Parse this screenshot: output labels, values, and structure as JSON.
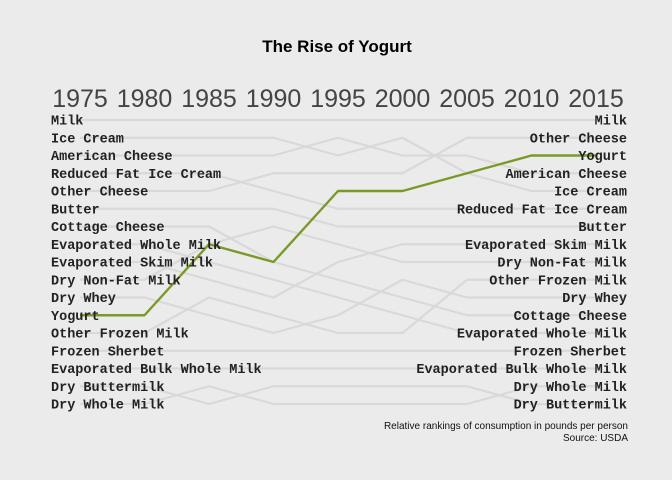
{
  "chart_data": {
    "type": "line",
    "title": "The Rise of Yogurt",
    "subtitle": "",
    "x": [
      "1975",
      "1980",
      "1985",
      "1990",
      "1995",
      "2000",
      "2005",
      "2010",
      "2015"
    ],
    "ylim": [
      1,
      17
    ],
    "highlight_series": "Yogurt",
    "colors": {
      "background": "#ebebeb",
      "highlight": "#7a9a28",
      "other_lines": "#d9d9d9",
      "year_labels": "#444444"
    },
    "left_labels": [
      "Milk",
      "Ice Cream",
      "American Cheese",
      "Reduced Fat Ice Cream",
      "Other Cheese",
      "Butter",
      "Cottage Cheese",
      "Evaporated Whole Milk",
      "Evaporated Skim Milk",
      "Dry Non-Fat Milk",
      "Dry Whey",
      "Yogurt",
      "Other Frozen Milk",
      "Frozen Sherbet",
      "Evaporated Bulk Whole Milk",
      "Dry Buttermilk",
      "Dry Whole Milk"
    ],
    "right_labels": [
      "Milk",
      "Other Cheese",
      "Yogurt",
      "American Cheese",
      "Ice Cream",
      "Reduced Fat Ice Cream",
      "Butter",
      "Evaporated Skim Milk",
      "Dry Non-Fat Milk",
      "Other Frozen Milk",
      "Dry Whey",
      "Cottage Cheese",
      "Evaporated Whole Milk",
      "Frozen Sherbet",
      "Evaporated Bulk Whole Milk",
      "Dry Whole Milk",
      "Dry Buttermilk"
    ],
    "series": [
      {
        "name": "Milk",
        "values": [
          1,
          1,
          1,
          1,
          1,
          1,
          1,
          1,
          1
        ]
      },
      {
        "name": "Ice Cream",
        "values": [
          2,
          2,
          2,
          2,
          3,
          2,
          4,
          5,
          5
        ]
      },
      {
        "name": "American Cheese",
        "values": [
          3,
          3,
          3,
          3,
          2,
          3,
          3,
          4,
          4
        ]
      },
      {
        "name": "Reduced Fat Ice Cream",
        "values": [
          4,
          4,
          4,
          5,
          6,
          6,
          6,
          6,
          6
        ]
      },
      {
        "name": "Other Cheese",
        "values": [
          5,
          5,
          5,
          4,
          4,
          4,
          2,
          2,
          2
        ]
      },
      {
        "name": "Butter",
        "values": [
          6,
          6,
          6,
          6,
          7,
          7,
          7,
          7,
          7
        ]
      },
      {
        "name": "Cottage Cheese",
        "values": [
          7,
          7,
          7,
          9,
          10,
          11,
          12,
          12,
          12
        ]
      },
      {
        "name": "Evaporated Whole Milk",
        "values": [
          8,
          8,
          9,
          10,
          11,
          12,
          13,
          13,
          13
        ]
      },
      {
        "name": "Evaporated Skim Milk",
        "values": [
          9,
          9,
          10,
          11,
          9,
          8,
          8,
          8,
          8
        ]
      },
      {
        "name": "Dry Non-Fat Milk",
        "values": [
          10,
          10,
          8,
          7,
          8,
          9,
          9,
          9,
          9
        ]
      },
      {
        "name": "Dry Whey",
        "values": [
          11,
          11,
          12,
          13,
          12,
          10,
          11,
          11,
          11
        ]
      },
      {
        "name": "Yogurt",
        "values": [
          12,
          12,
          8,
          9,
          5,
          5,
          4,
          3,
          3
        ]
      },
      {
        "name": "Other Frozen Milk",
        "values": [
          13,
          13,
          11,
          12,
          13,
          13,
          10,
          10,
          10
        ]
      },
      {
        "name": "Frozen Sherbet",
        "values": [
          14,
          14,
          14,
          14,
          14,
          14,
          14,
          14,
          14
        ]
      },
      {
        "name": "Evaporated Bulk Whole Milk",
        "values": [
          15,
          15,
          15,
          15,
          15,
          15,
          15,
          15,
          15
        ]
      },
      {
        "name": "Dry Buttermilk",
        "values": [
          16,
          16,
          17,
          16,
          16,
          16,
          16,
          17,
          17
        ]
      },
      {
        "name": "Dry Whole Milk",
        "values": [
          17,
          17,
          16,
          17,
          17,
          17,
          17,
          16,
          16
        ]
      }
    ],
    "caption": [
      "Relative rankings of consumption in pounds per person",
      "Source: USDA"
    ]
  }
}
